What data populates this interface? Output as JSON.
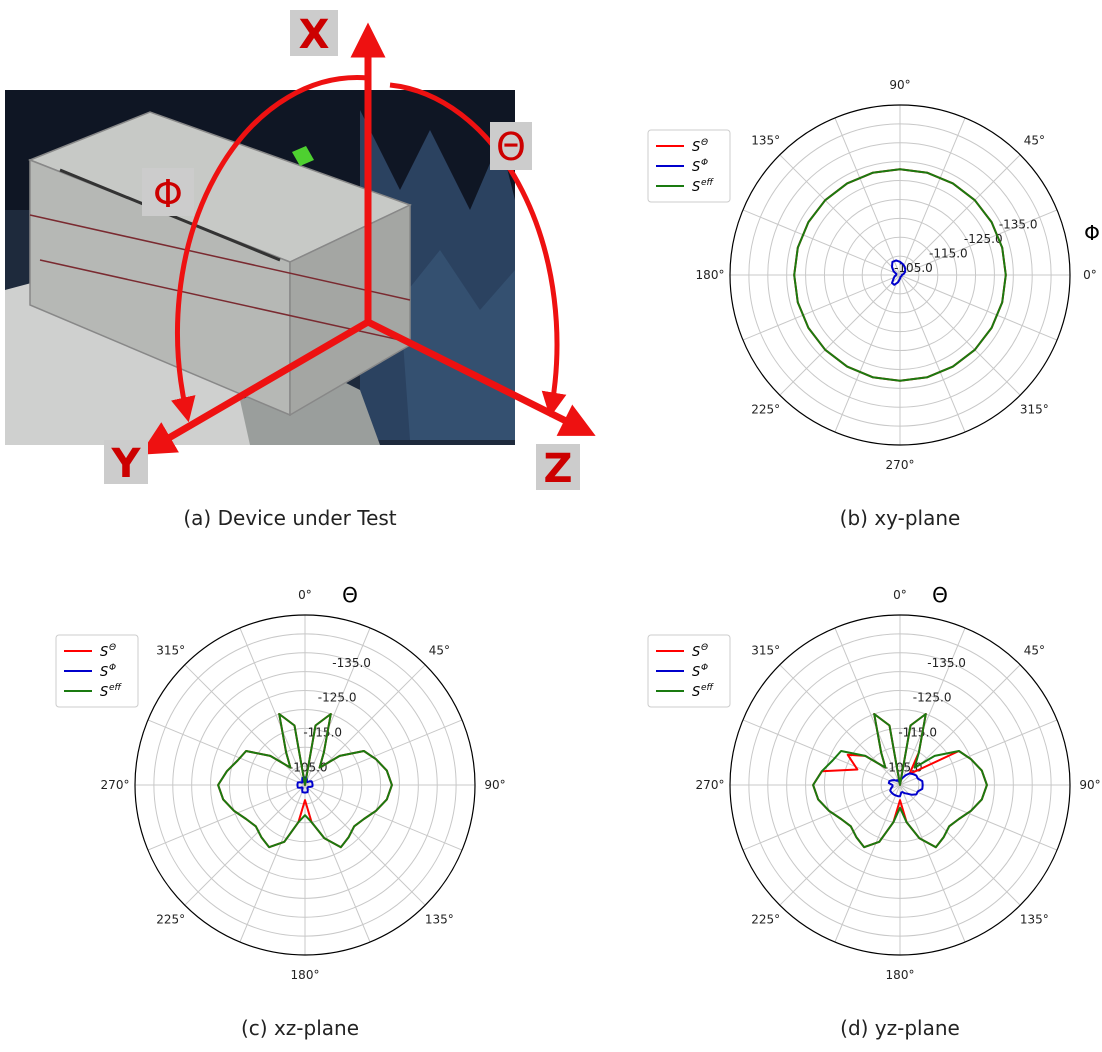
{
  "photo": {
    "axis_labels": {
      "x": "X",
      "y": "Y",
      "z": "Z",
      "theta": "Θ",
      "phi": "Φ"
    },
    "colors": {
      "arrow": "#ee1111",
      "label_box": "#cccccc",
      "label_text": "#cc0000"
    }
  },
  "captions": {
    "a": "(a) Device under Test",
    "b": "(b) xy-plane",
    "c": "(c) xz-plane",
    "d": "(d) yz-plane"
  },
  "legend": [
    {
      "key": "theta",
      "label": "S",
      "sup": "Θ",
      "color": "#ff0000"
    },
    {
      "key": "phi",
      "label": "S",
      "sup": "Φ",
      "color": "#0000cc"
    },
    {
      "key": "eff",
      "label": "S",
      "sup": "eff",
      "color": "#1a7a10"
    }
  ],
  "chart_data": [
    {
      "id": "xy",
      "type": "polar",
      "caption": "(b) xy-plane",
      "angle_label": "Φ",
      "angle_ticks": [
        "0°",
        "45°",
        "90°",
        "135°",
        "180°",
        "225°",
        "270°",
        "315°"
      ],
      "zero_location": "E",
      "direction": "counterclockwise",
      "r_scale": "dB",
      "r_center": -100,
      "r_edge": -145,
      "r_tick_labels": [
        "-105.0",
        "-115.0",
        "-125.0",
        "-135.0"
      ],
      "grid": true,
      "legend_position": "top-left",
      "series": [
        {
          "key": "theta",
          "color": "#ff0000",
          "r": [
            -128,
            -128,
            -128,
            -128,
            -128,
            -128,
            -128,
            -128,
            -128,
            -128,
            -128,
            -128,
            -128,
            -128,
            -128,
            -128,
            -128,
            -128,
            -128,
            -128,
            -128,
            -128,
            -128,
            -128
          ]
        },
        {
          "key": "phi",
          "color": "#0000cc",
          "r": [
            -100.5,
            -101,
            -101.5,
            -102,
            -102.5,
            -103,
            -103.5,
            -104,
            -104,
            -103,
            -102,
            -101,
            -101,
            -101.5,
            -102,
            -103,
            -103,
            -102,
            -101,
            -100.5,
            -100.5,
            -100.5,
            -100.5,
            -100.5
          ]
        },
        {
          "key": "eff",
          "color": "#1a7a10",
          "r": [
            -128,
            -128,
            -128,
            -128,
            -128,
            -128,
            -128,
            -128,
            -128,
            -128,
            -128,
            -128,
            -128,
            -128,
            -128,
            -128,
            -128,
            -128,
            -128,
            -128,
            -128,
            -128,
            -128,
            -128
          ]
        }
      ]
    },
    {
      "id": "xz",
      "type": "polar",
      "caption": "(c) xz-plane",
      "angle_label": "Θ",
      "angle_ticks": [
        "0°",
        "45°",
        "90°",
        "135°",
        "180°",
        "225°",
        "270°",
        "315°"
      ],
      "zero_location": "N",
      "direction": "clockwise",
      "r_scale": "dB",
      "r_center": -100,
      "r_edge": -145,
      "r_tick_labels": [
        "-105.0",
        "-115.0",
        "-125.0",
        "-135.0"
      ],
      "grid": true,
      "legend_position": "top-left",
      "series": [
        {
          "key": "theta",
          "color": "#ff0000",
          "r": [
            -100,
            -116,
            -120,
            -110,
            -106,
            -112,
            -118,
            -120,
            -122,
            -123,
            -122,
            -120,
            -118,
            -117,
            -118,
            -119,
            -115,
            -110,
            -104,
            -110,
            -116,
            -119,
            -118,
            -117,
            -118,
            -120,
            -122,
            -123,
            -121,
            -119,
            -118,
            -112,
            -106,
            -110,
            -120,
            -116
          ]
        },
        {
          "key": "phi",
          "color": "#0000cc",
          "r": [
            -102,
            -102,
            -101.5,
            -101,
            -101,
            -101.5,
            -102,
            -102,
            -102,
            -102,
            -102,
            -101.5,
            -101,
            -101,
            -101,
            -101.5,
            -102,
            -102,
            -102,
            -102,
            -102,
            -101.5,
            -101,
            -101,
            -101.5,
            -102,
            -102,
            -102,
            -102,
            -102,
            -101.5,
            -101,
            -101,
            -101.5,
            -102,
            -102
          ]
        },
        {
          "key": "eff",
          "color": "#1a7a10",
          "r": [
            -100,
            -116,
            -120,
            -110,
            -106,
            -112,
            -118,
            -120,
            -122,
            -123,
            -122,
            -120,
            -118,
            -117,
            -118,
            -119,
            -115,
            -110,
            -108,
            -110,
            -116,
            -119,
            -118,
            -117,
            -118,
            -120,
            -122,
            -123,
            -121,
            -119,
            -118,
            -112,
            -106,
            -110,
            -120,
            -116
          ]
        }
      ]
    },
    {
      "id": "yz",
      "type": "polar",
      "caption": "(d) yz-plane",
      "angle_label": "Θ",
      "angle_ticks": [
        "0°",
        "45°",
        "90°",
        "135°",
        "180°",
        "225°",
        "270°",
        "315°"
      ],
      "zero_location": "N",
      "direction": "clockwise",
      "r_scale": "dB",
      "r_center": -100,
      "r_edge": -145,
      "r_tick_labels": [
        "-105.0",
        "-115.0",
        "-125.0",
        "-135.0"
      ],
      "grid": true,
      "legend_position": "top-left",
      "series": [
        {
          "key": "theta",
          "color": "#ff0000",
          "r": [
            -100,
            -116,
            -120,
            -110,
            -104,
            -106,
            -118,
            -120,
            -122,
            -123,
            -122,
            -120,
            -118,
            -117,
            -118,
            -119,
            -115,
            -110,
            -104,
            -110,
            -116,
            -119,
            -118,
            -117,
            -118,
            -120,
            -122,
            -123,
            -121,
            -112,
            -116,
            -112,
            -106,
            -110,
            -120,
            -116
          ]
        },
        {
          "key": "phi",
          "color": "#0000cc",
          "r": [
            -101,
            -101.5,
            -102,
            -103,
            -104,
            -104.5,
            -105,
            -105,
            -106,
            -106,
            -106,
            -105,
            -105,
            -104,
            -103,
            -102.5,
            -102,
            -102,
            -103,
            -103,
            -103,
            -103,
            -103,
            -103,
            -103,
            -102.5,
            -102,
            -102,
            -103,
            -103,
            -102.5,
            -102,
            -101.5,
            -101.5,
            -101,
            -101
          ]
        },
        {
          "key": "eff",
          "color": "#1a7a10",
          "r": [
            -100,
            -116,
            -120,
            -110,
            -106,
            -112,
            -118,
            -120,
            -122,
            -123,
            -122,
            -120,
            -118,
            -117,
            -118,
            -119,
            -115,
            -110,
            -106,
            -110,
            -116,
            -119,
            -118,
            -117,
            -118,
            -120,
            -122,
            -123,
            -121,
            -119,
            -118,
            -112,
            -106,
            -110,
            -120,
            -116
          ]
        }
      ]
    }
  ]
}
